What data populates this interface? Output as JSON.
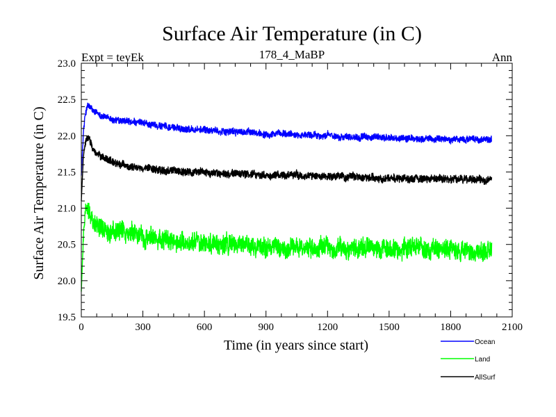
{
  "chart_data": {
    "type": "line",
    "title": "Surface Air Temperature (in C)",
    "subtitle_left": "Expt = teyEk",
    "subtitle_center": "178_4_MaBP",
    "subtitle_right": "Ann",
    "xlabel": "Time (in years since start)",
    "ylabel": "Surface Air Temperature (in C)",
    "xlim": [
      0,
      2100
    ],
    "ylim": [
      19.5,
      23.0
    ],
    "x_ticks": [
      0,
      300,
      600,
      900,
      1200,
      1500,
      1800,
      2100
    ],
    "x_tick_labels": [
      "0",
      "300",
      "600",
      "900",
      "1200",
      "1500",
      "1800",
      "2100"
    ],
    "y_ticks": [
      19.5,
      20.0,
      20.5,
      21.0,
      21.5,
      22.0,
      22.5,
      23.0
    ],
    "y_tick_labels": [
      "19.5",
      "20.0",
      "20.5",
      "21.0",
      "21.5",
      "22.0",
      "22.5",
      "23.0"
    ],
    "legend_position": "bottom-right",
    "series": [
      {
        "name": "Ocean",
        "color": "#0000ff",
        "x": [
          0,
          10,
          20,
          30,
          40,
          60,
          100,
          150,
          200,
          300,
          400,
          500,
          600,
          700,
          800,
          900,
          1000,
          1200,
          1400,
          1600,
          1800,
          2000
        ],
        "values": [
          21.45,
          22.05,
          22.3,
          22.42,
          22.4,
          22.33,
          22.28,
          22.22,
          22.2,
          22.17,
          22.13,
          22.1,
          22.08,
          22.06,
          22.05,
          22.03,
          22.02,
          22.0,
          21.98,
          21.96,
          21.95,
          21.95
        ],
        "noise_amplitude": 0.07
      },
      {
        "name": "Land",
        "color": "#00ff00",
        "x": [
          0,
          10,
          20,
          30,
          40,
          60,
          100,
          150,
          200,
          300,
          400,
          500,
          600,
          700,
          800,
          900,
          1000,
          1200,
          1400,
          1600,
          1800,
          2000
        ],
        "values": [
          19.85,
          20.6,
          20.95,
          21.05,
          21.0,
          20.8,
          20.72,
          20.68,
          20.65,
          20.6,
          20.56,
          20.53,
          20.51,
          20.5,
          20.49,
          20.48,
          20.47,
          20.45,
          20.44,
          20.43,
          20.42,
          20.41
        ],
        "noise_amplitude": 0.2
      },
      {
        "name": "AllSurf",
        "color": "#000000",
        "x": [
          0,
          10,
          20,
          30,
          40,
          60,
          100,
          150,
          200,
          300,
          400,
          500,
          600,
          700,
          800,
          900,
          1000,
          1200,
          1400,
          1600,
          1800,
          2000
        ],
        "values": [
          21.1,
          21.7,
          21.9,
          21.97,
          21.95,
          21.78,
          21.7,
          21.65,
          21.6,
          21.55,
          21.52,
          21.5,
          21.49,
          21.48,
          21.47,
          21.46,
          21.45,
          21.44,
          21.42,
          21.41,
          21.4,
          21.4
        ],
        "noise_amplitude": 0.08
      }
    ]
  }
}
